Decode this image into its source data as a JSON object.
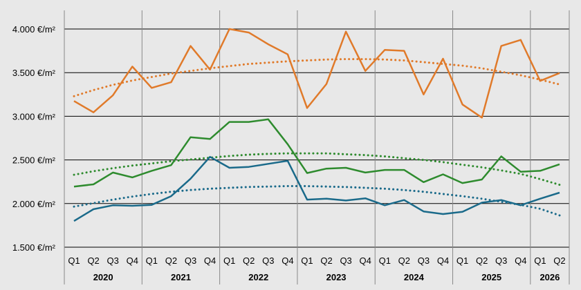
{
  "chart_data": {
    "type": "line",
    "categories": [
      "Q1",
      "Q2",
      "Q3",
      "Q4",
      "Q1",
      "Q2",
      "Q3",
      "Q4",
      "Q1",
      "Q2",
      "Q3",
      "Q4",
      "Q1",
      "Q2",
      "Q3",
      "Q4",
      "Q1",
      "Q2",
      "Q3",
      "Q4",
      "Q1",
      "Q2",
      "Q3",
      "Q4",
      "Q1",
      "Q2"
    ],
    "year_groups": [
      {
        "label": "2020",
        "start": 0,
        "end": 3
      },
      {
        "label": "2021",
        "start": 4,
        "end": 7
      },
      {
        "label": "2022",
        "start": 8,
        "end": 11
      },
      {
        "label": "2023",
        "start": 12,
        "end": 15
      },
      {
        "label": "2024",
        "start": 16,
        "end": 19
      },
      {
        "label": "2025",
        "start": 20,
        "end": 23
      },
      {
        "label": "2026",
        "start": 24,
        "end": 25
      }
    ],
    "ylim": [
      1500,
      4000
    ],
    "yticks": [
      1500,
      2000,
      2500,
      3000,
      3500,
      4000
    ],
    "ytick_labels": [
      "1.500 €/m²",
      "2.000 €/m²",
      "2.500 €/m²",
      "3.000 €/m²",
      "3.500 €/m²",
      "4.000 €/m²"
    ],
    "grid": "horizontal",
    "series": [
      {
        "color": "#e07a2a",
        "values": [
          3175,
          3045,
          3240,
          3570,
          3325,
          3390,
          3805,
          3535,
          4000,
          3960,
          3825,
          3710,
          3095,
          3370,
          3970,
          3520,
          3760,
          3750,
          3250,
          3660,
          3135,
          2985,
          3805,
          3875,
          3405,
          3495
        ],
        "trend": [
          3230,
          3300,
          3360,
          3410,
          3450,
          3490,
          3520,
          3550,
          3575,
          3600,
          3615,
          3630,
          3640,
          3650,
          3655,
          3655,
          3650,
          3640,
          3620,
          3600,
          3580,
          3550,
          3510,
          3470,
          3420,
          3365
        ]
      },
      {
        "color": "#2e8b2e",
        "values": [
          2195,
          2220,
          2355,
          2300,
          2375,
          2440,
          2760,
          2740,
          2935,
          2935,
          2965,
          2680,
          2350,
          2400,
          2410,
          2355,
          2385,
          2385,
          2245,
          2335,
          2235,
          2275,
          2540,
          2365,
          2375,
          2450
        ],
        "trend": [
          2330,
          2370,
          2405,
          2435,
          2460,
          2485,
          2505,
          2525,
          2545,
          2560,
          2570,
          2575,
          2575,
          2575,
          2565,
          2555,
          2540,
          2520,
          2500,
          2475,
          2445,
          2415,
          2380,
          2340,
          2280,
          2215
        ]
      },
      {
        "color": "#1a6a8a",
        "values": [
          1800,
          1935,
          1980,
          1975,
          1985,
          2085,
          2285,
          2535,
          2410,
          2420,
          2455,
          2490,
          2045,
          2055,
          2035,
          2060,
          1980,
          2040,
          1910,
          1880,
          1905,
          2010,
          2040,
          1980,
          2055,
          2125
        ],
        "trend": [
          1965,
          2005,
          2045,
          2080,
          2110,
          2135,
          2155,
          2170,
          2180,
          2190,
          2195,
          2200,
          2200,
          2195,
          2190,
          2180,
          2170,
          2155,
          2135,
          2110,
          2085,
          2055,
          2020,
          1985,
          1940,
          1865
        ]
      }
    ]
  }
}
